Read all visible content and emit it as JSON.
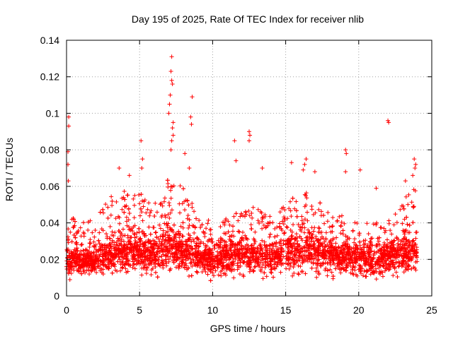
{
  "chart_data": {
    "type": "scatter",
    "title": "Day 195 of 2025, Rate Of TEC Index for receiver nlib",
    "xlabel": "GPS time / hours",
    "ylabel": "ROTI / TECUs",
    "xlim": [
      0,
      25
    ],
    "ylim": [
      0,
      0.14
    ],
    "grid": true,
    "marker": "plus",
    "series_color": "#ff0000",
    "xticks": [
      {
        "value": 0,
        "label": "0"
      },
      {
        "value": 5,
        "label": "5"
      },
      {
        "value": 10,
        "label": "10"
      },
      {
        "value": 15,
        "label": "15"
      },
      {
        "value": 20,
        "label": "20"
      },
      {
        "value": 25,
        "label": "25"
      }
    ],
    "yticks": [
      {
        "value": 0,
        "label": "0"
      },
      {
        "value": 0.02,
        "label": "0.02"
      },
      {
        "value": 0.04,
        "label": "0.04"
      },
      {
        "value": 0.06,
        "label": "0.06"
      },
      {
        "value": 0.08,
        "label": "0.08"
      },
      {
        "value": 0.1,
        "label": "0.1"
      },
      {
        "value": 0.12,
        "label": "0.12"
      },
      {
        "value": 0.14,
        "label": "0.14"
      }
    ],
    "profile": {
      "description": "ROTI baseline and spread per hour band, peaks are notable outliers",
      "baseline": [
        {
          "x": 0,
          "lo": 0.008,
          "mid": 0.018,
          "hi": 0.045
        },
        {
          "x": 1,
          "lo": 0.008,
          "mid": 0.016,
          "hi": 0.04
        },
        {
          "x": 2,
          "lo": 0.008,
          "mid": 0.017,
          "hi": 0.042
        },
        {
          "x": 3,
          "lo": 0.009,
          "mid": 0.02,
          "hi": 0.055
        },
        {
          "x": 4,
          "lo": 0.009,
          "mid": 0.022,
          "hi": 0.06
        },
        {
          "x": 5,
          "lo": 0.008,
          "mid": 0.022,
          "hi": 0.058
        },
        {
          "x": 6,
          "lo": 0.008,
          "mid": 0.02,
          "hi": 0.05
        },
        {
          "x": 7,
          "lo": 0.01,
          "mid": 0.025,
          "hi": 0.065
        },
        {
          "x": 8,
          "lo": 0.009,
          "mid": 0.022,
          "hi": 0.06
        },
        {
          "x": 9,
          "lo": 0.008,
          "mid": 0.02,
          "hi": 0.045
        },
        {
          "x": 10,
          "lo": 0.007,
          "mid": 0.018,
          "hi": 0.04
        },
        {
          "x": 11,
          "lo": 0.008,
          "mid": 0.02,
          "hi": 0.045
        },
        {
          "x": 12,
          "lo": 0.008,
          "mid": 0.021,
          "hi": 0.05
        },
        {
          "x": 13,
          "lo": 0.008,
          "mid": 0.02,
          "hi": 0.048
        },
        {
          "x": 14,
          "lo": 0.007,
          "mid": 0.019,
          "hi": 0.045
        },
        {
          "x": 15,
          "lo": 0.008,
          "mid": 0.021,
          "hi": 0.05
        },
        {
          "x": 16,
          "lo": 0.009,
          "mid": 0.024,
          "hi": 0.058
        },
        {
          "x": 17,
          "lo": 0.008,
          "mid": 0.022,
          "hi": 0.055
        },
        {
          "x": 18,
          "lo": 0.008,
          "mid": 0.02,
          "hi": 0.045
        },
        {
          "x": 19,
          "lo": 0.008,
          "mid": 0.019,
          "hi": 0.045
        },
        {
          "x": 20,
          "lo": 0.007,
          "mid": 0.018,
          "hi": 0.04
        },
        {
          "x": 21,
          "lo": 0.007,
          "mid": 0.018,
          "hi": 0.04
        },
        {
          "x": 22,
          "lo": 0.008,
          "mid": 0.019,
          "hi": 0.042
        },
        {
          "x": 23,
          "lo": 0.008,
          "mid": 0.021,
          "hi": 0.055
        },
        {
          "x": 24,
          "lo": 0.009,
          "mid": 0.022,
          "hi": 0.06
        }
      ],
      "peaks": [
        {
          "x": 0.15,
          "y": 0.098
        },
        {
          "x": 0.15,
          "y": 0.093
        },
        {
          "x": 0.1,
          "y": 0.079
        },
        {
          "x": 0.1,
          "y": 0.072
        },
        {
          "x": 0.12,
          "y": 0.063
        },
        {
          "x": 3.6,
          "y": 0.07
        },
        {
          "x": 4.3,
          "y": 0.066
        },
        {
          "x": 5.1,
          "y": 0.085
        },
        {
          "x": 5.2,
          "y": 0.075
        },
        {
          "x": 5.15,
          "y": 0.07
        },
        {
          "x": 7.2,
          "y": 0.131
        },
        {
          "x": 7.15,
          "y": 0.123
        },
        {
          "x": 7.2,
          "y": 0.118
        },
        {
          "x": 7.25,
          "y": 0.116
        },
        {
          "x": 7.1,
          "y": 0.11
        },
        {
          "x": 7.05,
          "y": 0.105
        },
        {
          "x": 7.0,
          "y": 0.1
        },
        {
          "x": 7.3,
          "y": 0.095
        },
        {
          "x": 7.25,
          "y": 0.092
        },
        {
          "x": 7.3,
          "y": 0.088
        },
        {
          "x": 7.2,
          "y": 0.085
        },
        {
          "x": 7.15,
          "y": 0.08
        },
        {
          "x": 8.1,
          "y": 0.078
        },
        {
          "x": 8.6,
          "y": 0.109
        },
        {
          "x": 8.5,
          "y": 0.098
        },
        {
          "x": 8.55,
          "y": 0.094
        },
        {
          "x": 8.4,
          "y": 0.07
        },
        {
          "x": 11.5,
          "y": 0.085
        },
        {
          "x": 11.6,
          "y": 0.074
        },
        {
          "x": 12.5,
          "y": 0.09
        },
        {
          "x": 12.55,
          "y": 0.088
        },
        {
          "x": 12.5,
          "y": 0.085
        },
        {
          "x": 13.4,
          "y": 0.07
        },
        {
          "x": 15.4,
          "y": 0.073
        },
        {
          "x": 16.4,
          "y": 0.075
        },
        {
          "x": 16.3,
          "y": 0.072
        },
        {
          "x": 16.2,
          "y": 0.069
        },
        {
          "x": 17.0,
          "y": 0.068
        },
        {
          "x": 19.1,
          "y": 0.08
        },
        {
          "x": 19.15,
          "y": 0.078
        },
        {
          "x": 19.1,
          "y": 0.068
        },
        {
          "x": 20.1,
          "y": 0.069
        },
        {
          "x": 21.2,
          "y": 0.059
        },
        {
          "x": 22.0,
          "y": 0.096
        },
        {
          "x": 22.05,
          "y": 0.095
        },
        {
          "x": 23.8,
          "y": 0.075
        },
        {
          "x": 23.9,
          "y": 0.072
        },
        {
          "x": 23.85,
          "y": 0.07
        },
        {
          "x": 23.7,
          "y": 0.066
        },
        {
          "x": 23.2,
          "y": 0.063
        }
      ]
    }
  }
}
